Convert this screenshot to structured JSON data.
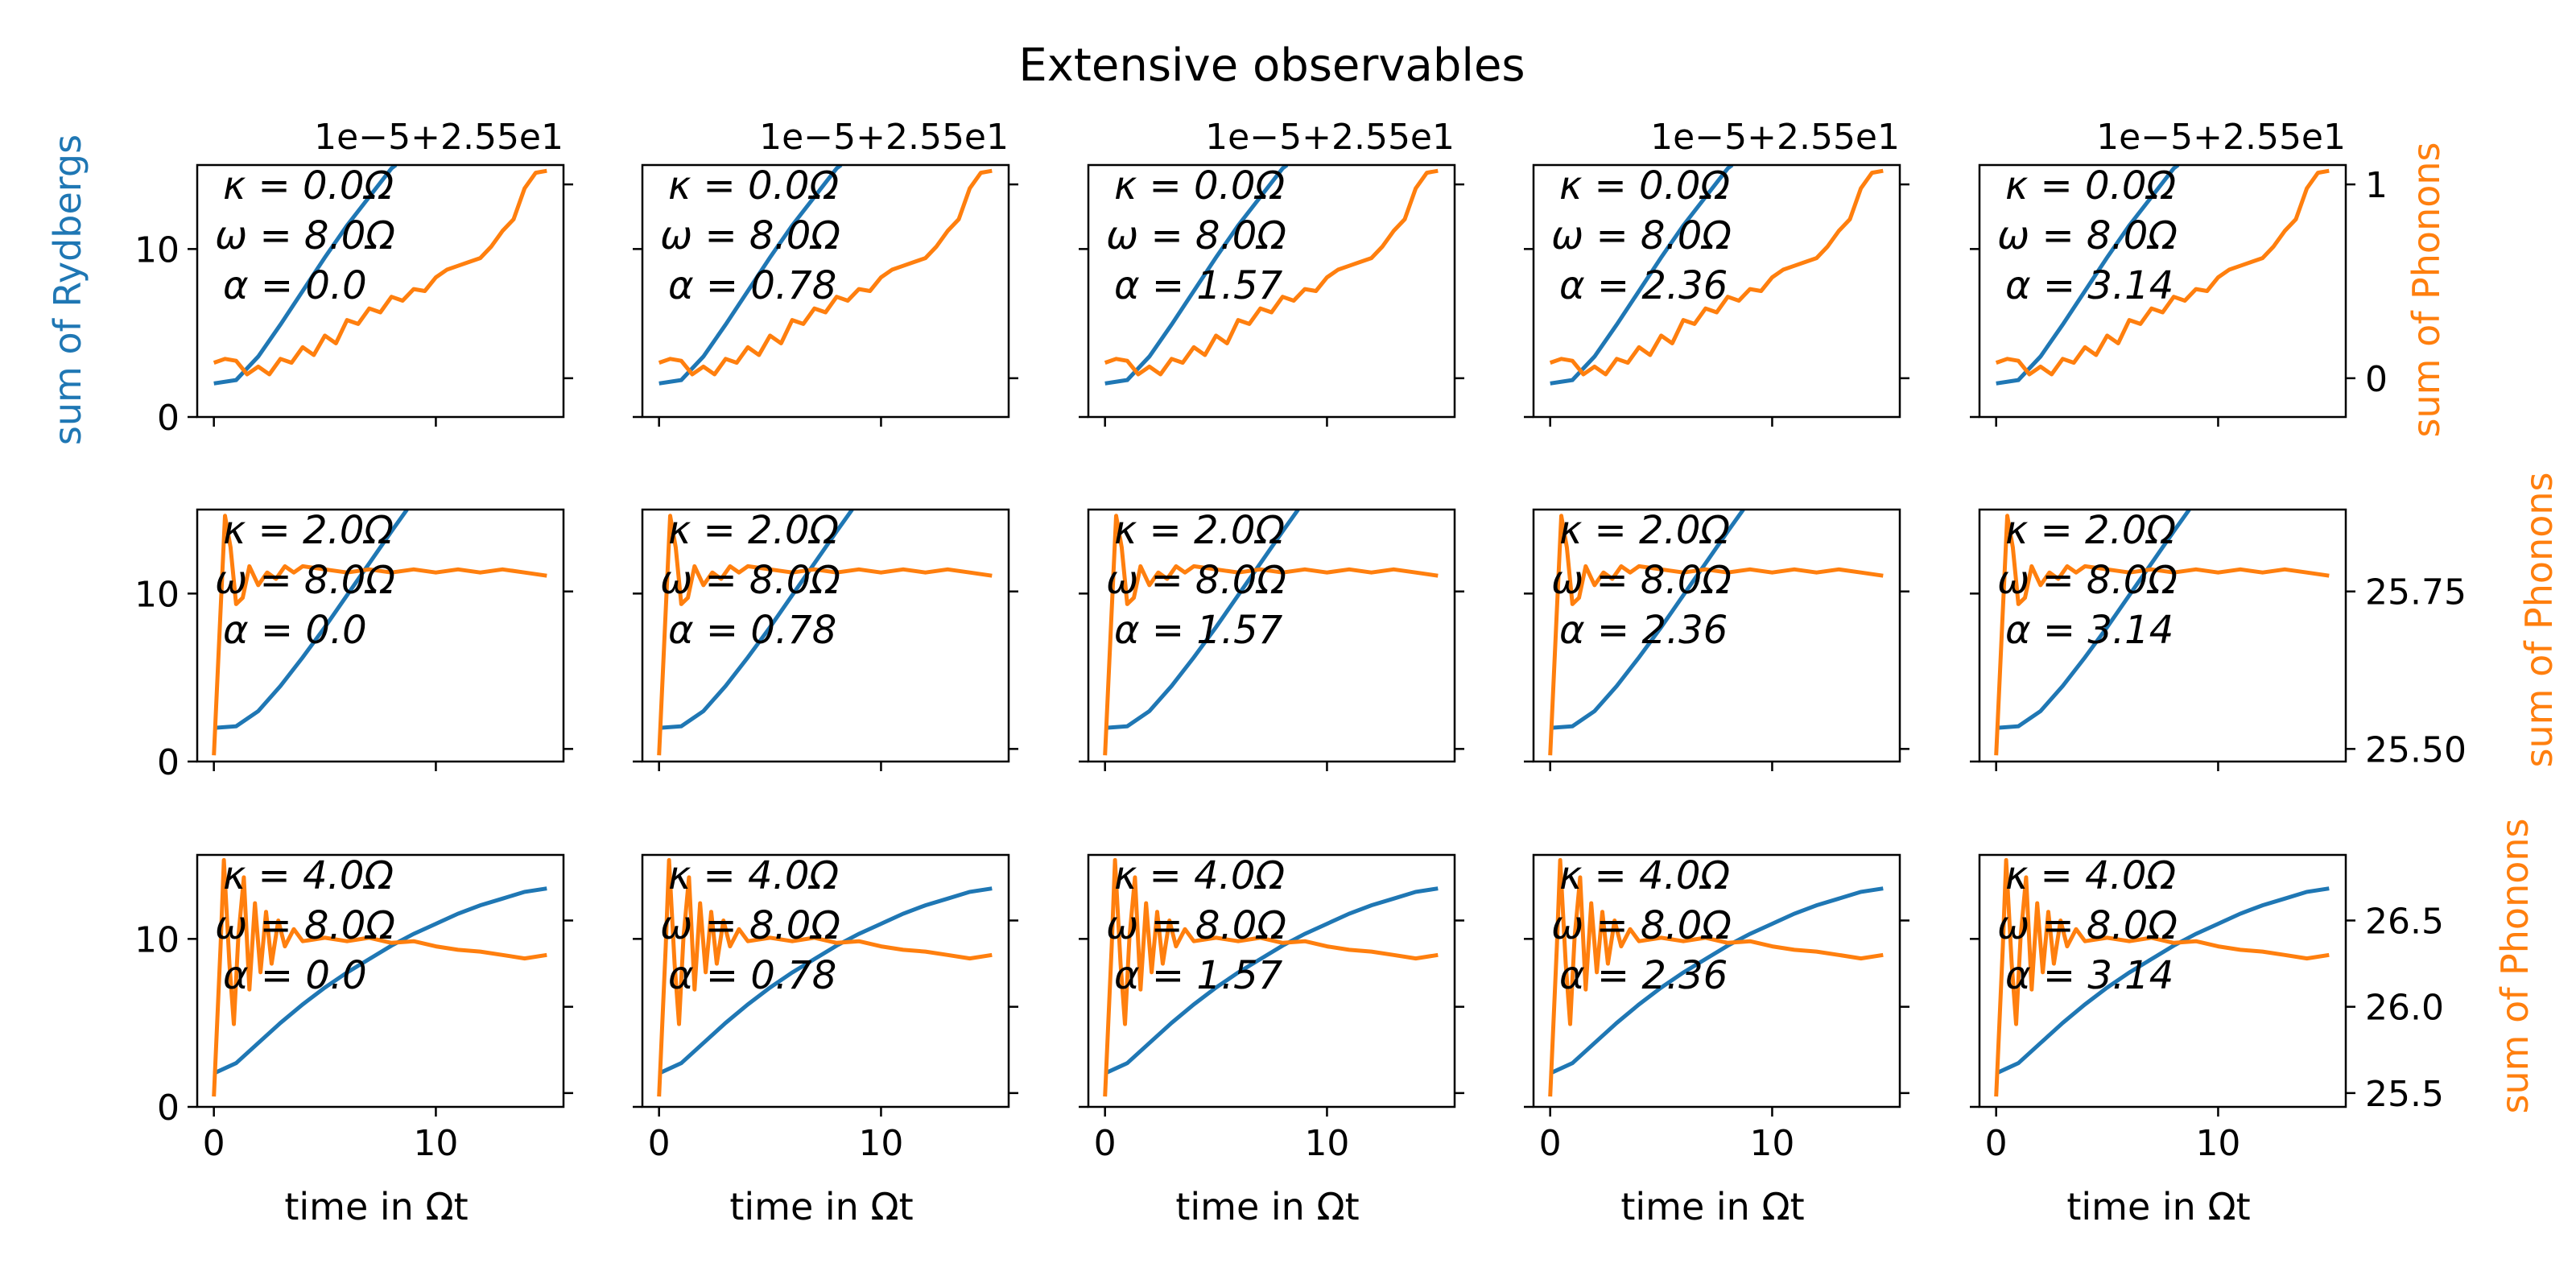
{
  "chart_data": {
    "type": "line",
    "title": "Extensive observables",
    "xlabel": "time in Ωt",
    "ylabel_left": "sum of Rydbergs",
    "ylabel_right": "sum of Phonons",
    "xlim": [
      -0.75,
      15.75
    ],
    "xticks": [
      0,
      10
    ],
    "ylim_left": [
      0,
      15
    ],
    "yticks_left": [
      0,
      10
    ],
    "colors": {
      "rydbergs": "#1f77b4",
      "phonons": "#ff7f0e"
    },
    "alpha_values": [
      "0.0",
      "0.78",
      "1.57",
      "2.36",
      "3.14"
    ],
    "rows": [
      {
        "kappa_label": "κ = 0.0Ω",
        "omega_label": "ω = 8.0Ω",
        "right_offset_text": "1e−5+2.55e1",
        "right_ylim": [
          -0.2,
          1.1
        ],
        "right_ticks": [
          {
            "v": 0,
            "label": "0"
          },
          {
            "v": 1,
            "label": "1"
          }
        ],
        "rydberg_curve": [
          [
            0,
            2
          ],
          [
            1,
            2.2
          ],
          [
            2,
            3.6
          ],
          [
            3,
            5.5
          ],
          [
            4,
            7.5
          ],
          [
            5,
            9.5
          ],
          [
            6,
            11.4
          ],
          [
            7,
            13.1
          ],
          [
            8,
            14.8
          ],
          [
            8.2,
            15
          ]
        ],
        "phonon_curve": [
          [
            0,
            0.08
          ],
          [
            0.5,
            0.1
          ],
          [
            1,
            0.09
          ],
          [
            1.5,
            0.02
          ],
          [
            2,
            0.06
          ],
          [
            2.5,
            0.02
          ],
          [
            3,
            0.1
          ],
          [
            3.5,
            0.08
          ],
          [
            4,
            0.16
          ],
          [
            4.5,
            0.12
          ],
          [
            5,
            0.22
          ],
          [
            5.5,
            0.18
          ],
          [
            6,
            0.3
          ],
          [
            6.5,
            0.28
          ],
          [
            7,
            0.36
          ],
          [
            7.5,
            0.34
          ],
          [
            8,
            0.42
          ],
          [
            8.5,
            0.4
          ],
          [
            9,
            0.46
          ],
          [
            9.5,
            0.45
          ],
          [
            10,
            0.52
          ],
          [
            10.5,
            0.56
          ],
          [
            11,
            0.58
          ],
          [
            11.5,
            0.6
          ],
          [
            12,
            0.62
          ],
          [
            12.5,
            0.68
          ],
          [
            13,
            0.76
          ],
          [
            13.5,
            0.82
          ],
          [
            14,
            0.98
          ],
          [
            14.5,
            1.06
          ],
          [
            15,
            1.07
          ]
        ]
      },
      {
        "kappa_label": "κ = 2.0Ω",
        "omega_label": "ω = 8.0Ω",
        "right_offset_text": "",
        "right_ylim": [
          25.48,
          25.88
        ],
        "right_ticks": [
          {
            "v": 25.5,
            "label": "25.50"
          },
          {
            "v": 25.75,
            "label": "25.75"
          }
        ],
        "rydberg_curve": [
          [
            0,
            2
          ],
          [
            1,
            2.1
          ],
          [
            2,
            3.0
          ],
          [
            3,
            4.5
          ],
          [
            4,
            6.2
          ],
          [
            5,
            8.0
          ],
          [
            6,
            9.9
          ],
          [
            7,
            11.8
          ],
          [
            8,
            13.7
          ],
          [
            8.7,
            15
          ]
        ],
        "phonon_curve": [
          [
            0,
            25.49
          ],
          [
            0.3,
            25.72
          ],
          [
            0.5,
            25.87
          ],
          [
            0.75,
            25.82
          ],
          [
            1,
            25.73
          ],
          [
            1.3,
            25.74
          ],
          [
            1.6,
            25.79
          ],
          [
            2,
            25.76
          ],
          [
            2.4,
            25.78
          ],
          [
            2.8,
            25.77
          ],
          [
            3.2,
            25.79
          ],
          [
            3.6,
            25.78
          ],
          [
            4,
            25.79
          ],
          [
            5,
            25.785
          ],
          [
            6,
            25.78
          ],
          [
            7,
            25.785
          ],
          [
            8,
            25.78
          ],
          [
            9,
            25.785
          ],
          [
            10,
            25.78
          ],
          [
            11,
            25.785
          ],
          [
            12,
            25.78
          ],
          [
            13,
            25.785
          ],
          [
            14,
            25.78
          ],
          [
            15,
            25.775
          ]
        ]
      },
      {
        "kappa_label": "κ = 4.0Ω",
        "omega_label": "ω = 8.0Ω",
        "right_offset_text": "",
        "right_ylim": [
          25.42,
          26.88
        ],
        "right_ticks": [
          {
            "v": 25.5,
            "label": "25.5"
          },
          {
            "v": 26.0,
            "label": "26.0"
          },
          {
            "v": 26.5,
            "label": "26.5"
          }
        ],
        "rydberg_curve": [
          [
            0,
            2
          ],
          [
            1,
            2.6
          ],
          [
            2,
            3.8
          ],
          [
            3,
            5.0
          ],
          [
            4,
            6.1
          ],
          [
            5,
            7.1
          ],
          [
            6,
            8.0
          ],
          [
            7,
            8.8
          ],
          [
            8,
            9.6
          ],
          [
            9,
            10.3
          ],
          [
            10,
            10.9
          ],
          [
            11,
            11.5
          ],
          [
            12,
            12.0
          ],
          [
            13,
            12.4
          ],
          [
            14,
            12.8
          ],
          [
            15,
            13.0
          ]
        ],
        "phonon_curve": [
          [
            0,
            25.48
          ],
          [
            0.3,
            26.35
          ],
          [
            0.45,
            26.85
          ],
          [
            0.7,
            26.25
          ],
          [
            0.9,
            25.9
          ],
          [
            1.1,
            26.4
          ],
          [
            1.35,
            26.75
          ],
          [
            1.6,
            26.1
          ],
          [
            1.85,
            26.6
          ],
          [
            2.1,
            26.2
          ],
          [
            2.35,
            26.55
          ],
          [
            2.6,
            26.25
          ],
          [
            2.9,
            26.5
          ],
          [
            3.2,
            26.35
          ],
          [
            3.6,
            26.45
          ],
          [
            4,
            26.38
          ],
          [
            5,
            26.4
          ],
          [
            6,
            26.38
          ],
          [
            7,
            26.4
          ],
          [
            8,
            26.37
          ],
          [
            9,
            26.38
          ],
          [
            10,
            26.35
          ],
          [
            11,
            26.33
          ],
          [
            12,
            26.32
          ],
          [
            13,
            26.3
          ],
          [
            14,
            26.28
          ],
          [
            15,
            26.3
          ]
        ]
      }
    ]
  }
}
